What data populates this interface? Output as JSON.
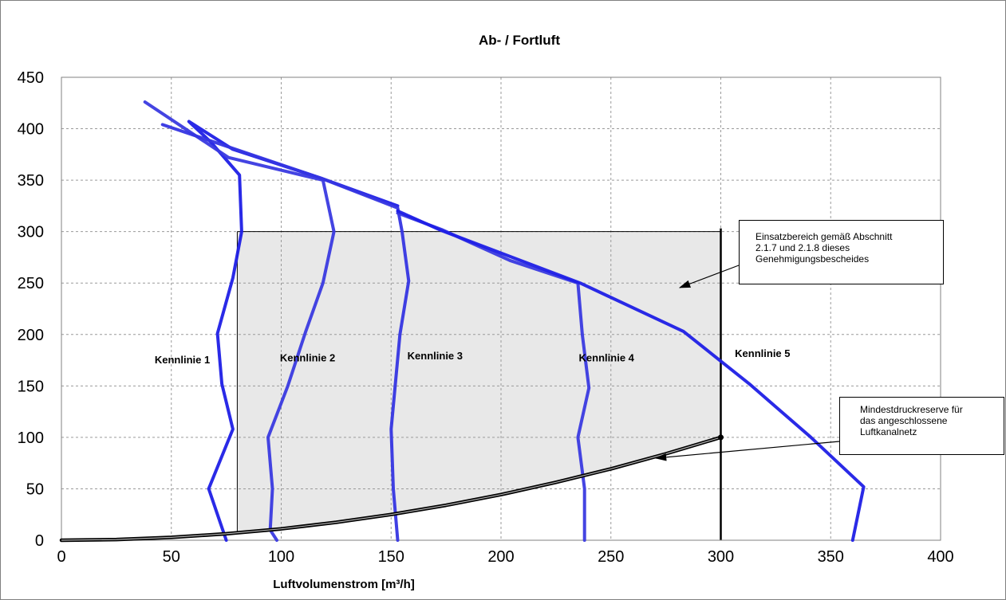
{
  "chart_data": {
    "type": "line",
    "title": "Ab- / Fortluft",
    "xlabel": "Luftvolumenstrom [m³/h]",
    "ylabel": "",
    "xlim": [
      0,
      400
    ],
    "ylim": [
      0,
      450
    ],
    "xticks": [
      0,
      50,
      100,
      150,
      200,
      250,
      300,
      350,
      400
    ],
    "yticks": [
      0,
      50,
      100,
      150,
      200,
      250,
      300,
      350,
      400,
      450
    ],
    "grid": true,
    "legend": "none",
    "series": [
      {
        "name": "Kennlinie 1",
        "color": "#1f1fe6",
        "points": [
          [
            75,
            0
          ],
          [
            67,
            50
          ],
          [
            78,
            108
          ],
          [
            73,
            152
          ],
          [
            71,
            201
          ],
          [
            78,
            255
          ],
          [
            82,
            300
          ],
          [
            81,
            355
          ],
          [
            68,
            387
          ],
          [
            58,
            407
          ],
          [
            78,
            380
          ],
          [
            118,
            352
          ],
          [
            153,
            325
          ]
        ]
      },
      {
        "name": "Kennlinie 2",
        "color": "#3a3ae0",
        "points": [
          [
            98,
            0
          ],
          [
            95,
            10
          ],
          [
            96,
            50
          ],
          [
            94,
            100
          ],
          [
            103,
            150
          ],
          [
            111,
            202
          ],
          [
            119,
            250
          ],
          [
            124,
            300
          ],
          [
            119,
            350
          ],
          [
            76,
            372
          ],
          [
            38,
            426
          ]
        ]
      },
      {
        "name": "Kennlinie 3",
        "color": "#3535e2",
        "points": [
          [
            153,
            0
          ],
          [
            151,
            50
          ],
          [
            150,
            108
          ],
          [
            154,
            200
          ],
          [
            158,
            252
          ],
          [
            155,
            300
          ],
          [
            153,
            323
          ],
          [
            118,
            352
          ],
          [
            46,
            404
          ]
        ]
      },
      {
        "name": "Kennlinie 4",
        "color": "#3a3ae0",
        "points": [
          [
            238,
            0
          ],
          [
            238,
            50
          ],
          [
            235,
            100
          ],
          [
            240,
            148
          ],
          [
            237,
            200
          ],
          [
            235,
            250
          ],
          [
            204,
            272
          ],
          [
            173,
            302
          ],
          [
            153,
            318
          ]
        ]
      },
      {
        "name": "Kennlinie 5",
        "color": "#1f1fe6",
        "points": [
          [
            360,
            0
          ],
          [
            365,
            52
          ],
          [
            341,
            100
          ],
          [
            313,
            152
          ],
          [
            283,
            203
          ],
          [
            236,
            250
          ],
          [
            173,
            301
          ],
          [
            153,
            320
          ]
        ]
      },
      {
        "name": "Mindestdruckreserve",
        "color": "#000000",
        "points": [
          [
            0,
            0
          ],
          [
            25,
            0.7
          ],
          [
            50,
            2.8
          ],
          [
            75,
            6.3
          ],
          [
            100,
            11.1
          ],
          [
            125,
            17.4
          ],
          [
            150,
            25
          ],
          [
            175,
            34
          ],
          [
            200,
            44.4
          ],
          [
            225,
            56.3
          ],
          [
            250,
            69.4
          ],
          [
            275,
            84
          ],
          [
            300,
            100
          ]
        ]
      }
    ],
    "annotations": [
      {
        "text": "Kennlinie 1",
        "x": 55,
        "y": 172
      },
      {
        "text": "Kennlinie 2",
        "x": 112,
        "y": 174
      },
      {
        "text": "Kennlinie 3",
        "x": 170,
        "y": 176
      },
      {
        "text": "Kennlinie 4",
        "x": 248,
        "y": 174
      },
      {
        "text": "Kennlinie 5",
        "x": 319,
        "y": 178
      }
    ],
    "operating_area": {
      "x_min": 80,
      "x_max": 300,
      "y_max": 300,
      "fill": "#e8e8e8",
      "label_lines": [
        "Einsatzbereich gemäß Abschnitt",
        "2.1.7 und 2.1.8 dieses",
        "Genehmigungsbescheides"
      ]
    },
    "reserve_note": {
      "label_lines": [
        "Mindestdruckreserve für",
        "das angeschlossene",
        "Luftkanalnetz"
      ]
    }
  }
}
